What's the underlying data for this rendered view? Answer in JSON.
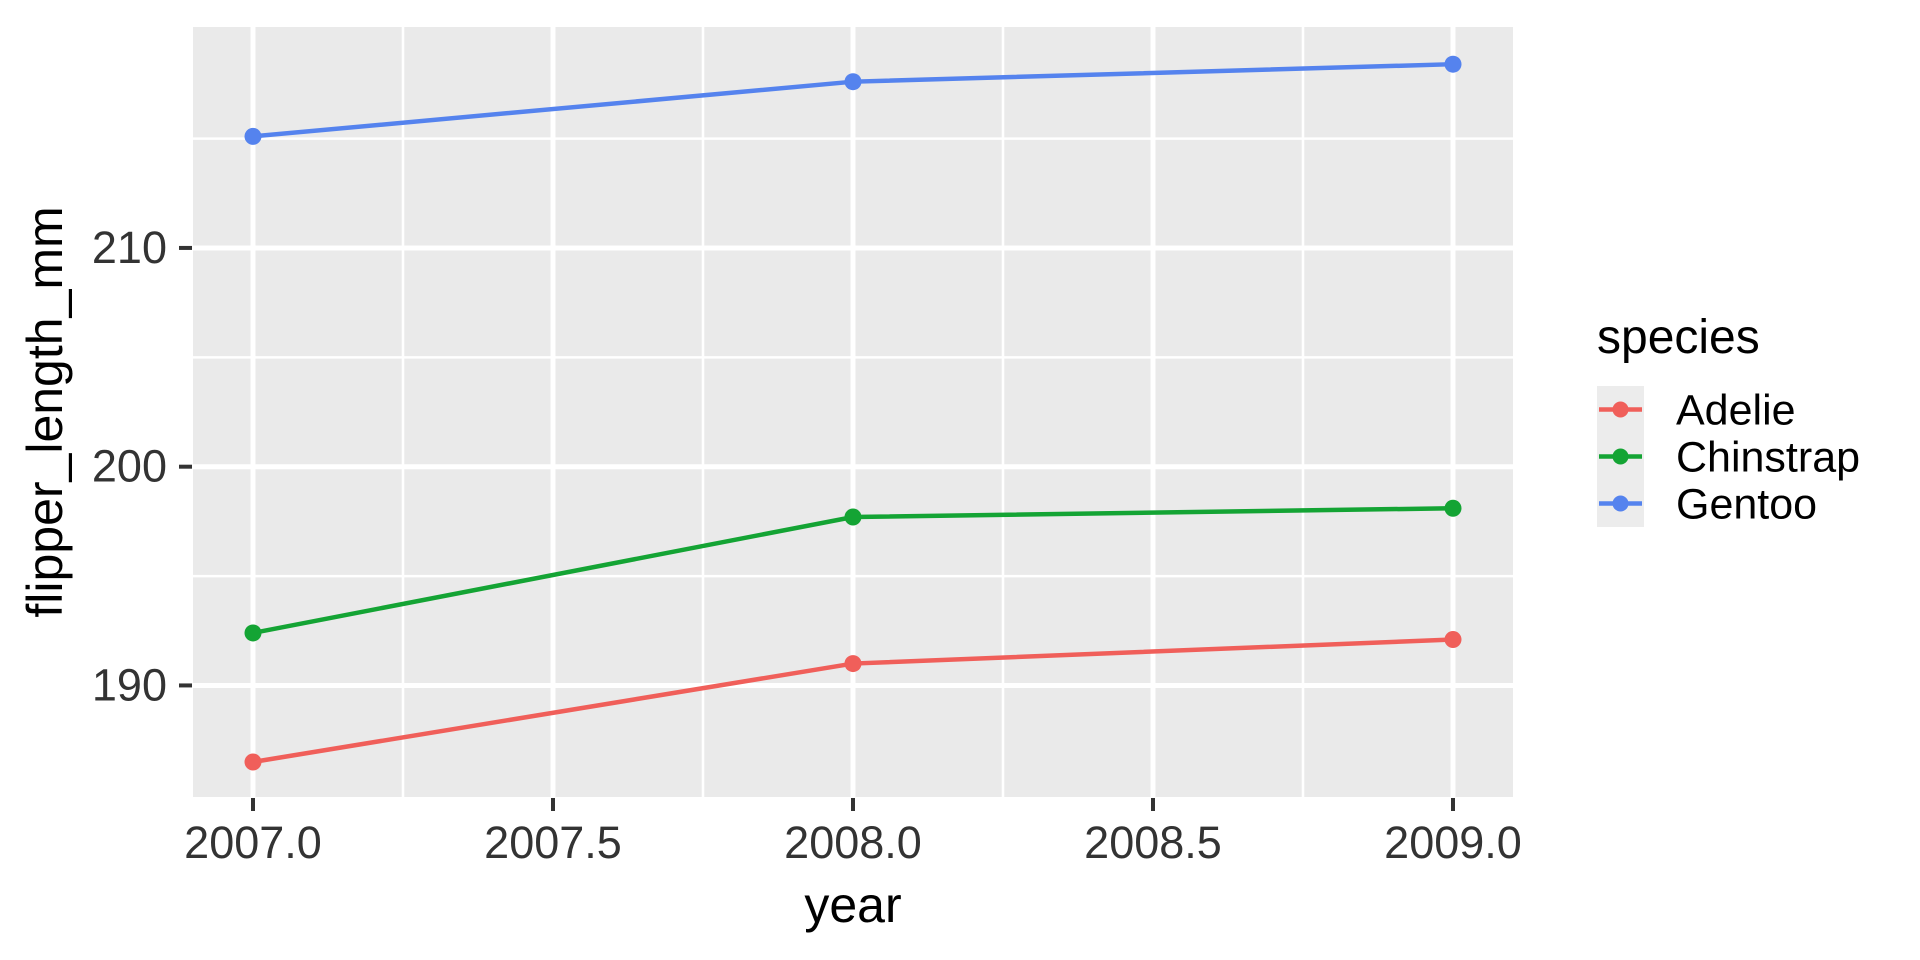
{
  "figure": {
    "background": "#FFFFFF",
    "panel_background": "#EAEAEA",
    "grid_color": "#FFFFFF",
    "tick_mark_color": "#333333",
    "tick_label_color": "#333333",
    "axis_title_color": "#000000",
    "legend_key_background": "#ECECEC"
  },
  "chart_data": {
    "type": "line",
    "title": "",
    "xlabel": "year",
    "ylabel": "flipper_length_mm",
    "x": [
      2007,
      2008,
      2009
    ],
    "series": [
      {
        "name": "Adelie",
        "color": "#F05F5A",
        "values": [
          186.5,
          191.0,
          192.1
        ]
      },
      {
        "name": "Chinstrap",
        "color": "#14A434",
        "values": [
          192.4,
          197.7,
          198.1
        ]
      },
      {
        "name": "Gentoo",
        "color": "#5583EE",
        "values": [
          215.1,
          217.6,
          218.4
        ]
      }
    ],
    "xlim": [
      2006.9,
      2009.1
    ],
    "ylim": [
      184.9,
      220.1
    ],
    "x_ticks": [
      {
        "value": 2007.0,
        "label": "2007.0"
      },
      {
        "value": 2007.5,
        "label": "2007.5"
      },
      {
        "value": 2008.0,
        "label": "2008.0"
      },
      {
        "value": 2008.5,
        "label": "2008.5"
      },
      {
        "value": 2009.0,
        "label": "2009.0"
      }
    ],
    "y_ticks": [
      {
        "value": 190,
        "label": "190"
      },
      {
        "value": 200,
        "label": "200"
      },
      {
        "value": 210,
        "label": "210"
      }
    ],
    "x_minor_ticks": [
      2007.25,
      2007.75,
      2008.25,
      2008.75
    ],
    "y_minor_ticks": [
      195,
      205,
      215
    ],
    "grid": true,
    "legend": {
      "title": "species",
      "position": "right"
    }
  }
}
